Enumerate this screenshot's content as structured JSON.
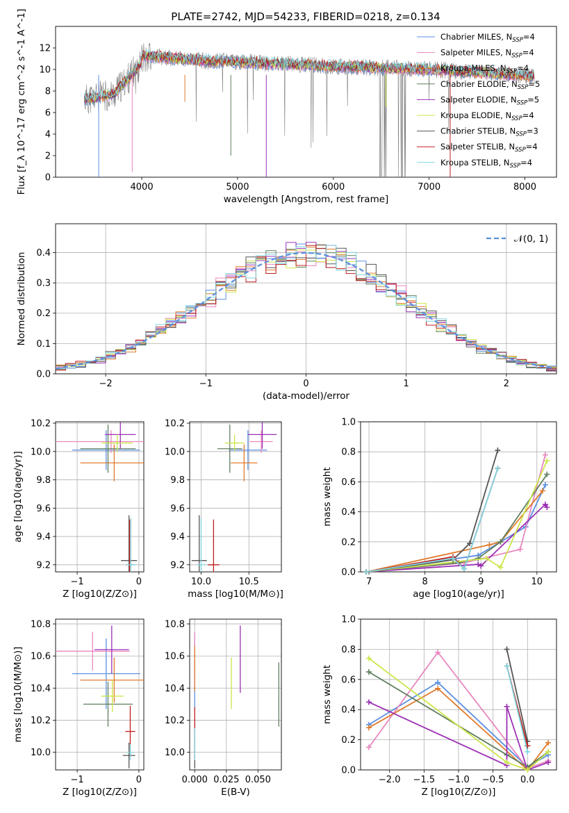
{
  "figure": {
    "title": "PLATE=2742, MJD=54233, FIBERID=0218, z=0.134"
  },
  "legend_series": [
    {
      "label": "Chabrier MILES, N_SSP=4",
      "color": "#5b8fe0"
    },
    {
      "label": "Salpeter MILES, N_SSP=4",
      "color": "#e887c0"
    },
    {
      "label": "Kroupa MILES, N_SSP=4",
      "color": "#e07a2b"
    },
    {
      "label": "Chabrier ELODIE, N_SSP=5",
      "color": "#5f7f5f"
    },
    {
      "label": "Salpeter ELODIE, N_SSP=5",
      "color": "#9b30b3"
    },
    {
      "label": "Kroupa ELODIE, N_SSP=4",
      "color": "#cde64a"
    },
    {
      "label": "Chabrier STELIB, N_SSP=3",
      "color": "#555555"
    },
    {
      "label": "Salpeter STELIB, N_SSP=4",
      "color": "#c01e1e"
    },
    {
      "label": "Kroupa STELIB, N_SSP=4",
      "color": "#7fd6e0"
    }
  ],
  "chart_data": [
    {
      "type": "line",
      "xlabel": "wavelength [Angstrom, rest frame]",
      "ylabel": "Flux [f_λ 10^-17 erg cm^-2 s^-1 A^-1]",
      "xlim": [
        3100,
        8330
      ],
      "ylim": [
        0,
        14
      ],
      "xticks": [
        "4000",
        "5000",
        "6000",
        "7000",
        "8000"
      ],
      "yticks": [
        "0",
        "2",
        "4",
        "6",
        "8",
        "10",
        "12"
      ],
      "xrange_data": [
        3400,
        8100
      ],
      "data_color": "#808080",
      "legend": "top-right",
      "grid": false
    },
    {
      "type": "bar",
      "xlabel": "(data-model)/error",
      "ylabel": "Normed distribution",
      "xlim": [
        -2.5,
        2.5
      ],
      "ylim": [
        0,
        0.495
      ],
      "xticks": [
        "−2",
        "−1",
        "0",
        "1",
        "2"
      ],
      "yticks": [
        "0.0",
        "0.1",
        "0.2",
        "0.3",
        "0.4"
      ],
      "reference_curve": {
        "label": "𝒩(0, 1)",
        "mean": 0,
        "sigma": 1,
        "color": "#5b8fe0"
      },
      "bin_width": 0.1,
      "legend": "top-right",
      "grid": true
    },
    {
      "type": "scatter",
      "panel": "age-vs-Z",
      "xlabel": "Z [log10(Z/Z⊙)]",
      "ylabel": "age [log10(age/yr)]",
      "xlim": [
        -1.35,
        0.08
      ],
      "ylim": [
        9.15,
        10.21
      ],
      "xticks": [
        "−1",
        "0"
      ],
      "yticks": [
        "9.2",
        "9.4",
        "9.6",
        "9.8",
        "10.0",
        "10.2"
      ],
      "points": [
        {
          "x": -0.53,
          "y": 10.01,
          "xerr": 0.55,
          "yerr": 0.14,
          "color": "#5b8fe0"
        },
        {
          "x": -0.45,
          "y": 10.07,
          "xerr": 0.9,
          "yerr": 0.08,
          "color": "#e887c0"
        },
        {
          "x": -0.4,
          "y": 9.92,
          "xerr": 0.55,
          "yerr": 0.13,
          "color": "#e07a2b"
        },
        {
          "x": -0.5,
          "y": 10.02,
          "xerr": 0.45,
          "yerr": 0.17,
          "color": "#5f7f5f"
        },
        {
          "x": -0.3,
          "y": 10.12,
          "xerr": 0.25,
          "yerr": 0.1,
          "color": "#9b30b3"
        },
        {
          "x": -0.35,
          "y": 10.06,
          "xerr": 0.25,
          "yerr": 0.06,
          "color": "#cde64a"
        },
        {
          "x": -0.16,
          "y": 9.23,
          "xerr": 0.13,
          "yerr": 0.32,
          "color": "#555555"
        },
        {
          "x": -0.15,
          "y": 9.2,
          "xerr": 0.06,
          "yerr": 0.32,
          "color": "#c01e1e"
        },
        {
          "x": -0.13,
          "y": 9.2,
          "xerr": 0.08,
          "yerr": 0.33,
          "color": "#7fd6e0"
        }
      ],
      "grid": true
    },
    {
      "type": "scatter",
      "panel": "age-vs-mass",
      "xlabel": "mass [log10(M/M⊙)]",
      "ylabel": "",
      "xlim": [
        9.88,
        10.84
      ],
      "ylim": [
        9.15,
        10.21
      ],
      "xticks": [
        "10.0",
        "10.5"
      ],
      "yticks": [
        "9.2",
        "9.4",
        "9.6",
        "9.8",
        "10.0",
        "10.2"
      ],
      "points": [
        {
          "x": 10.49,
          "y": 10.01,
          "xerr": 0.2,
          "yerr": 0.14,
          "color": "#5b8fe0"
        },
        {
          "x": 10.63,
          "y": 10.07,
          "xerr": 0.12,
          "yerr": 0.08,
          "color": "#e887c0"
        },
        {
          "x": 10.45,
          "y": 9.92,
          "xerr": 0.14,
          "yerr": 0.13,
          "color": "#e07a2b"
        },
        {
          "x": 10.3,
          "y": 10.02,
          "xerr": 0.13,
          "yerr": 0.17,
          "color": "#5f7f5f"
        },
        {
          "x": 10.64,
          "y": 10.12,
          "xerr": 0.15,
          "yerr": 0.1,
          "color": "#9b30b3"
        },
        {
          "x": 10.35,
          "y": 10.06,
          "xerr": 0.1,
          "yerr": 0.06,
          "color": "#cde64a"
        },
        {
          "x": 9.98,
          "y": 9.23,
          "xerr": 0.08,
          "yerr": 0.32,
          "color": "#555555"
        },
        {
          "x": 10.13,
          "y": 9.2,
          "xerr": 0.06,
          "yerr": 0.32,
          "color": "#c01e1e"
        },
        {
          "x": 10.0,
          "y": 9.2,
          "xerr": 0.04,
          "yerr": 0.33,
          "color": "#7fd6e0"
        }
      ],
      "grid": true
    },
    {
      "type": "line",
      "panel": "weight-vs-age",
      "xlabel": "age [log10(age/yr)]",
      "ylabel": "mass weight",
      "xlim": [
        6.85,
        10.35
      ],
      "ylim": [
        0,
        1.0
      ],
      "xticks": [
        "7",
        "8",
        "9",
        "10"
      ],
      "yticks": [
        "0.0",
        "0.2",
        "0.4",
        "0.6",
        "0.8",
        "1.0"
      ],
      "series": [
        {
          "color": "#5b8fe0",
          "x": [
            6.95,
            8.95,
            9.8,
            10.15
          ],
          "y": [
            0.0,
            0.11,
            0.3,
            0.58
          ]
        },
        {
          "color": "#e887c0",
          "x": [
            6.95,
            8.7,
            9.7,
            10.15
          ],
          "y": [
            0.0,
            0.06,
            0.15,
            0.78
          ]
        },
        {
          "color": "#e07a2b",
          "x": [
            6.95,
            9.15,
            9.35,
            10.1
          ],
          "y": [
            0.0,
            0.18,
            0.2,
            0.54
          ]
        },
        {
          "color": "#5f7f5f",
          "x": [
            6.95,
            8.6,
            8.95,
            9.35,
            10.18
          ],
          "y": [
            0.0,
            0.06,
            0.09,
            0.2,
            0.65
          ]
        },
        {
          "color": "#9b30b3",
          "x": [
            6.95,
            8.95,
            9.0,
            10.15,
            10.18
          ],
          "y": [
            0.0,
            0.05,
            0.04,
            0.45,
            0.43
          ]
        },
        {
          "color": "#cde64a",
          "x": [
            6.95,
            9.1,
            9.35,
            10.18
          ],
          "y": [
            0.0,
            0.09,
            0.03,
            0.74
          ]
        },
        {
          "color": "#555555",
          "x": [
            6.95,
            8.5,
            8.8,
            9.3
          ],
          "y": [
            0.0,
            0.08,
            0.19,
            0.81
          ]
        },
        {
          "color": "#c01e1e",
          "x": [
            6.95,
            8.5,
            8.7,
            9.3
          ],
          "y": [
            0.0,
            0.1,
            0.02,
            0.69
          ]
        },
        {
          "color": "#7fd6e0",
          "x": [
            6.95,
            8.5,
            8.7,
            9.3
          ],
          "y": [
            0.0,
            0.09,
            0.02,
            0.69
          ]
        }
      ],
      "grid": true
    },
    {
      "type": "scatter",
      "panel": "mass-vs-Z",
      "xlabel": "Z [log10(Z/Z⊙)]",
      "ylabel": "mass [log10(M/M⊙)]",
      "xlim": [
        -1.35,
        0.08
      ],
      "ylim": [
        9.89,
        10.83
      ],
      "xticks": [
        "−1",
        "0"
      ],
      "yticks": [
        "10.0",
        "10.2",
        "10.4",
        "10.6",
        "10.8"
      ],
      "points": [
        {
          "x": -0.53,
          "y": 10.49,
          "xerr": 0.55,
          "yerr": 0.22,
          "color": "#5b8fe0"
        },
        {
          "x": -0.75,
          "y": 10.63,
          "xerr": 0.6,
          "yerr": 0.12,
          "color": "#e887c0"
        },
        {
          "x": -0.4,
          "y": 10.45,
          "xerr": 0.55,
          "yerr": 0.14,
          "color": "#e07a2b"
        },
        {
          "x": -0.5,
          "y": 10.3,
          "xerr": 0.4,
          "yerr": 0.14,
          "color": "#5f7f5f"
        },
        {
          "x": -0.44,
          "y": 10.64,
          "xerr": 0.28,
          "yerr": 0.15,
          "color": "#9b30b3"
        },
        {
          "x": -0.43,
          "y": 10.35,
          "xerr": 0.18,
          "yerr": 0.1,
          "color": "#cde64a"
        },
        {
          "x": -0.16,
          "y": 9.98,
          "xerr": 0.1,
          "yerr": 0.08,
          "color": "#555555"
        },
        {
          "x": -0.14,
          "y": 10.13,
          "xerr": 0.08,
          "yerr": 0.16,
          "color": "#c01e1e"
        },
        {
          "x": -0.14,
          "y": 10.0,
          "xerr": 0.06,
          "yerr": 0.05,
          "color": "#7fd6e0"
        }
      ],
      "grid": true
    },
    {
      "type": "scatter",
      "panel": "mass-vs-ebv",
      "xlabel": "E(B-V)",
      "ylabel": "",
      "xlim": [
        -0.004,
        0.0685
      ],
      "ylim": [
        9.89,
        10.83
      ],
      "xticks": [
        "0.000",
        "0.025",
        "0.050"
      ],
      "yticks": [
        "10.0",
        "10.2",
        "10.4",
        "10.6",
        "10.8"
      ],
      "points": [
        {
          "x": 0.0,
          "y": 10.49,
          "xerr": 0,
          "yerr": 0.22,
          "color": "#5b8fe0"
        },
        {
          "x": 0.0,
          "y": 10.63,
          "xerr": 0,
          "yerr": 0.12,
          "color": "#e887c0"
        },
        {
          "x": 0.0,
          "y": 10.52,
          "xerr": 0,
          "yerr": 0.14,
          "color": "#e07a2b"
        },
        {
          "x": 0.0665,
          "y": 10.36,
          "xerr": 0,
          "yerr": 0.2,
          "color": "#5f7f5f"
        },
        {
          "x": 0.036,
          "y": 10.58,
          "xerr": 0,
          "yerr": 0.21,
          "color": "#9b30b3"
        },
        {
          "x": 0.029,
          "y": 10.43,
          "xerr": 0,
          "yerr": 0.16,
          "color": "#cde64a"
        },
        {
          "x": 0.0,
          "y": 10.0,
          "xerr": 0,
          "yerr": 0.1,
          "color": "#555555"
        },
        {
          "x": 0.0,
          "y": 10.12,
          "xerr": 0,
          "yerr": 0.16,
          "color": "#c01e1e"
        },
        {
          "x": 0.0,
          "y": 10.05,
          "xerr": 0,
          "yerr": 0.1,
          "color": "#7fd6e0"
        }
      ],
      "grid": true
    },
    {
      "type": "line",
      "panel": "weight-vs-Z",
      "xlabel": "Z [log10(Z/Z⊙)]",
      "ylabel": "mass weight",
      "xlim": [
        -2.42,
        0.42
      ],
      "ylim": [
        0,
        1.0
      ],
      "xticks": [
        "−2.0",
        "−1.5",
        "−1.0",
        "−0.5",
        "0.0"
      ],
      "yticks": [
        "0.0",
        "0.2",
        "0.4",
        "0.6",
        "0.8",
        "1.0"
      ],
      "series": [
        {
          "color": "#5b8fe0",
          "x": [
            -2.3,
            -1.3,
            0.0,
            0.3
          ],
          "y": [
            0.3,
            0.58,
            0.02,
            0.1
          ]
        },
        {
          "color": "#e887c0",
          "x": [
            -2.3,
            -1.3,
            0.0,
            0.3
          ],
          "y": [
            0.15,
            0.78,
            0.01,
            0.06
          ]
        },
        {
          "color": "#e07a2b",
          "x": [
            -2.3,
            -1.3,
            0.0,
            0.3
          ],
          "y": [
            0.28,
            0.54,
            0.0,
            0.18
          ]
        },
        {
          "color": "#5f7f5f",
          "x": [
            -2.3,
            -0.3,
            0.0,
            0.3
          ],
          "y": [
            0.65,
            0.1,
            0.02,
            0.12
          ]
        },
        {
          "color": "#9b30b3",
          "x": [
            -2.3,
            -0.3,
            -0.3,
            0.0,
            0.3
          ],
          "y": [
            0.45,
            0.03,
            0.42,
            0.0,
            0.05
          ]
        },
        {
          "color": "#cde64a",
          "x": [
            -2.3,
            -0.3,
            0.0,
            0.3
          ],
          "y": [
            0.74,
            0.05,
            0.0,
            0.12
          ]
        },
        {
          "color": "#555555",
          "x": [
            -0.3,
            0.0
          ],
          "y": [
            0.8,
            0.19
          ]
        },
        {
          "color": "#c01e1e",
          "x": [
            -0.3,
            0.0
          ],
          "y": [
            0.69,
            0.16
          ]
        },
        {
          "color": "#7fd6e0",
          "x": [
            -0.3,
            0.0
          ],
          "y": [
            0.69,
            0.12
          ]
        }
      ],
      "grid": true
    }
  ]
}
